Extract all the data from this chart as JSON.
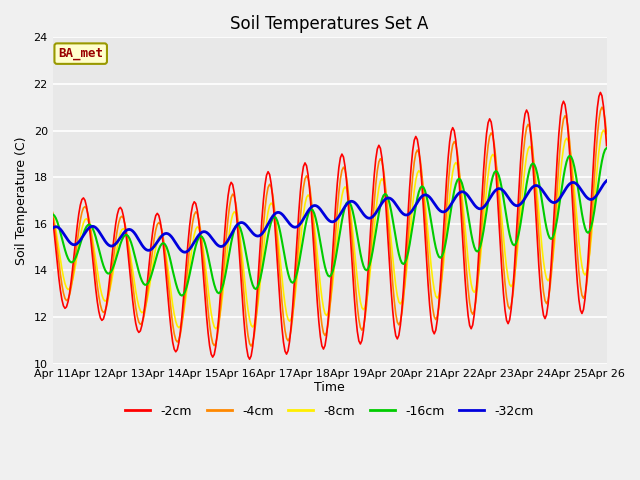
{
  "title": "Soil Temperatures Set A",
  "xlabel": "Time",
  "ylabel": "Soil Temperature (C)",
  "ylim": [
    10,
    24
  ],
  "yticks": [
    10,
    12,
    14,
    16,
    18,
    20,
    22,
    24
  ],
  "xtick_labels": [
    "Apr 11",
    "Apr 12",
    "Apr 13",
    "Apr 14",
    "Apr 15",
    "Apr 16",
    "Apr 17",
    "Apr 18",
    "Apr 19",
    "Apr 20",
    "Apr 21",
    "Apr 22",
    "Apr 23",
    "Apr 24",
    "Apr 25",
    "Apr 26"
  ],
  "xtick_positions": [
    0,
    24,
    48,
    72,
    96,
    120,
    144,
    168,
    192,
    216,
    240,
    264,
    288,
    312,
    336,
    360
  ],
  "colors": {
    "-2cm": "#ff0000",
    "-4cm": "#ff8800",
    "-8cm": "#ffee00",
    "-16cm": "#00cc00",
    "-32cm": "#0000dd"
  },
  "legend_label": "BA_met",
  "legend_bg": "#ffffcc",
  "legend_border": "#999900",
  "fig_bg": "#f0f0f0",
  "plot_bg": "#e8e8e8",
  "grid_color": "#ffffff",
  "title_fontsize": 12,
  "label_fontsize": 9,
  "tick_fontsize": 8
}
